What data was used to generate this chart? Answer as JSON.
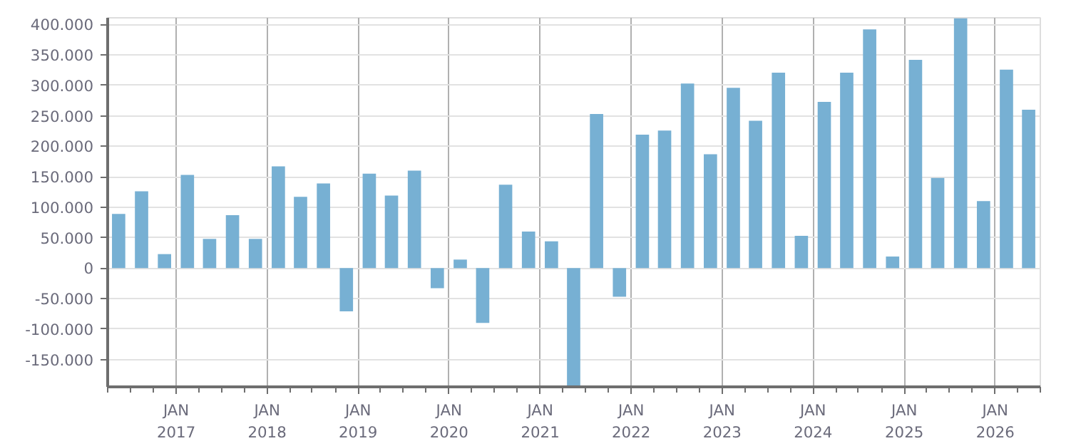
{
  "chart_data": {
    "type": "bar",
    "color": "#77b0d3",
    "grid": true,
    "x": [
      "2016-05-15",
      "2016-08-15",
      "2016-11-15",
      "2017-02-15",
      "2017-05-15",
      "2017-08-15",
      "2017-11-15",
      "2018-02-15",
      "2018-05-15",
      "2018-08-15",
      "2018-11-15",
      "2019-02-15",
      "2019-05-15",
      "2019-08-15",
      "2019-11-15",
      "2020-02-15",
      "2020-05-15",
      "2020-08-15",
      "2020-11-15",
      "2021-02-15",
      "2021-05-15",
      "2021-08-15",
      "2021-11-15",
      "2022-02-15",
      "2022-05-15",
      "2022-08-15",
      "2022-11-15",
      "2023-02-15",
      "2023-05-15",
      "2023-08-15",
      "2023-11-15",
      "2024-02-15",
      "2024-05-15",
      "2024-08-15",
      "2024-11-15",
      "2025-02-15",
      "2025-05-15",
      "2025-08-15",
      "2025-11-15",
      "2026-02-15",
      "2026-05-15"
    ],
    "values": [
      89000,
      126000,
      23000,
      153000,
      48000,
      87000,
      48000,
      167000,
      117000,
      139000,
      -71000,
      155000,
      119000,
      160000,
      -33000,
      14000,
      -90000,
      137000,
      60000,
      44000,
      -195000,
      253000,
      -47000,
      219000,
      226000,
      303000,
      187000,
      296000,
      242000,
      321000,
      53000,
      273000,
      321000,
      392000,
      19000,
      342000,
      148000,
      410000,
      110000,
      326000,
      260000
    ],
    "xlim": [
      "2016-04-01",
      "2026-07-01"
    ],
    "xticks": [
      {
        "value": "2017-01-01",
        "label": "JAN\n2017"
      },
      {
        "value": "2018-01-01",
        "label": "JAN\n2018"
      },
      {
        "value": "2019-01-01",
        "label": "JAN\n2019"
      },
      {
        "value": "2020-01-01",
        "label": "JAN\n2020"
      },
      {
        "value": "2021-01-01",
        "label": "JAN\n2021"
      },
      {
        "value": "2022-01-01",
        "label": "JAN\n2022"
      },
      {
        "value": "2023-01-01",
        "label": "JAN\n2023"
      },
      {
        "value": "2024-01-01",
        "label": "JAN\n2024"
      },
      {
        "value": "2025-01-01",
        "label": "JAN\n2025"
      },
      {
        "value": "2026-01-01",
        "label": "JAN\n2026"
      }
    ],
    "ylim": [
      -195000,
      411000
    ],
    "yticks": [
      {
        "value": -150000,
        "label": "-150.000"
      },
      {
        "value": -100000,
        "label": "-100.000"
      },
      {
        "value": -50000,
        "label": "-50.000"
      },
      {
        "value": 0,
        "label": "0"
      },
      {
        "value": 50000,
        "label": "50.000"
      },
      {
        "value": 100000,
        "label": "100.000"
      },
      {
        "value": 150000,
        "label": "150.000"
      },
      {
        "value": 200000,
        "label": "200.000"
      },
      {
        "value": 250000,
        "label": "250.000"
      },
      {
        "value": 300000,
        "label": "300.000"
      },
      {
        "value": 350000,
        "label": "350.000"
      },
      {
        "value": 400000,
        "label": "400.000"
      }
    ]
  }
}
